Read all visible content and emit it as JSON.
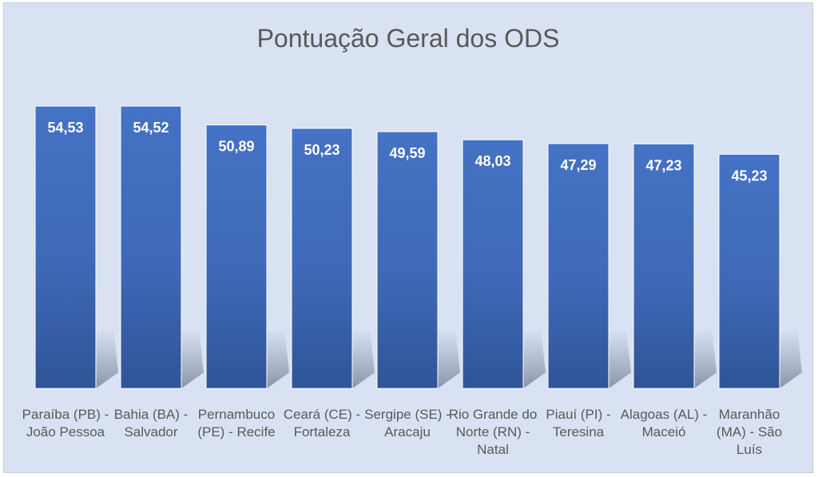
{
  "chart_data": {
    "type": "bar",
    "title": "Pontuação Geral dos ODS",
    "xlabel": "",
    "ylabel": "",
    "ylim": [
      0,
      54.53
    ],
    "grid": false,
    "legend": "none",
    "bar_color": "#4472c4",
    "categories": [
      "Paraíba (PB) - João Pessoa",
      "Bahia (BA) - Salvador",
      "Pernambuco (PE) - Recife",
      "Ceará (CE) - Fortaleza",
      "Sergipe (SE) - Aracaju",
      "Rio Grande do Norte (RN) - Natal",
      "Piauí (PI) - Teresina",
      "Alagoas (AL) - Maceió",
      "Maranhão (MA) - São Luís"
    ],
    "values": [
      54.53,
      54.52,
      50.89,
      50.23,
      49.59,
      48.03,
      47.29,
      47.23,
      45.23
    ],
    "value_labels": [
      "54,53",
      "54,52",
      "50,89",
      "50,23",
      "49,59",
      "48,03",
      "47,29",
      "47,23",
      "45,23"
    ]
  }
}
